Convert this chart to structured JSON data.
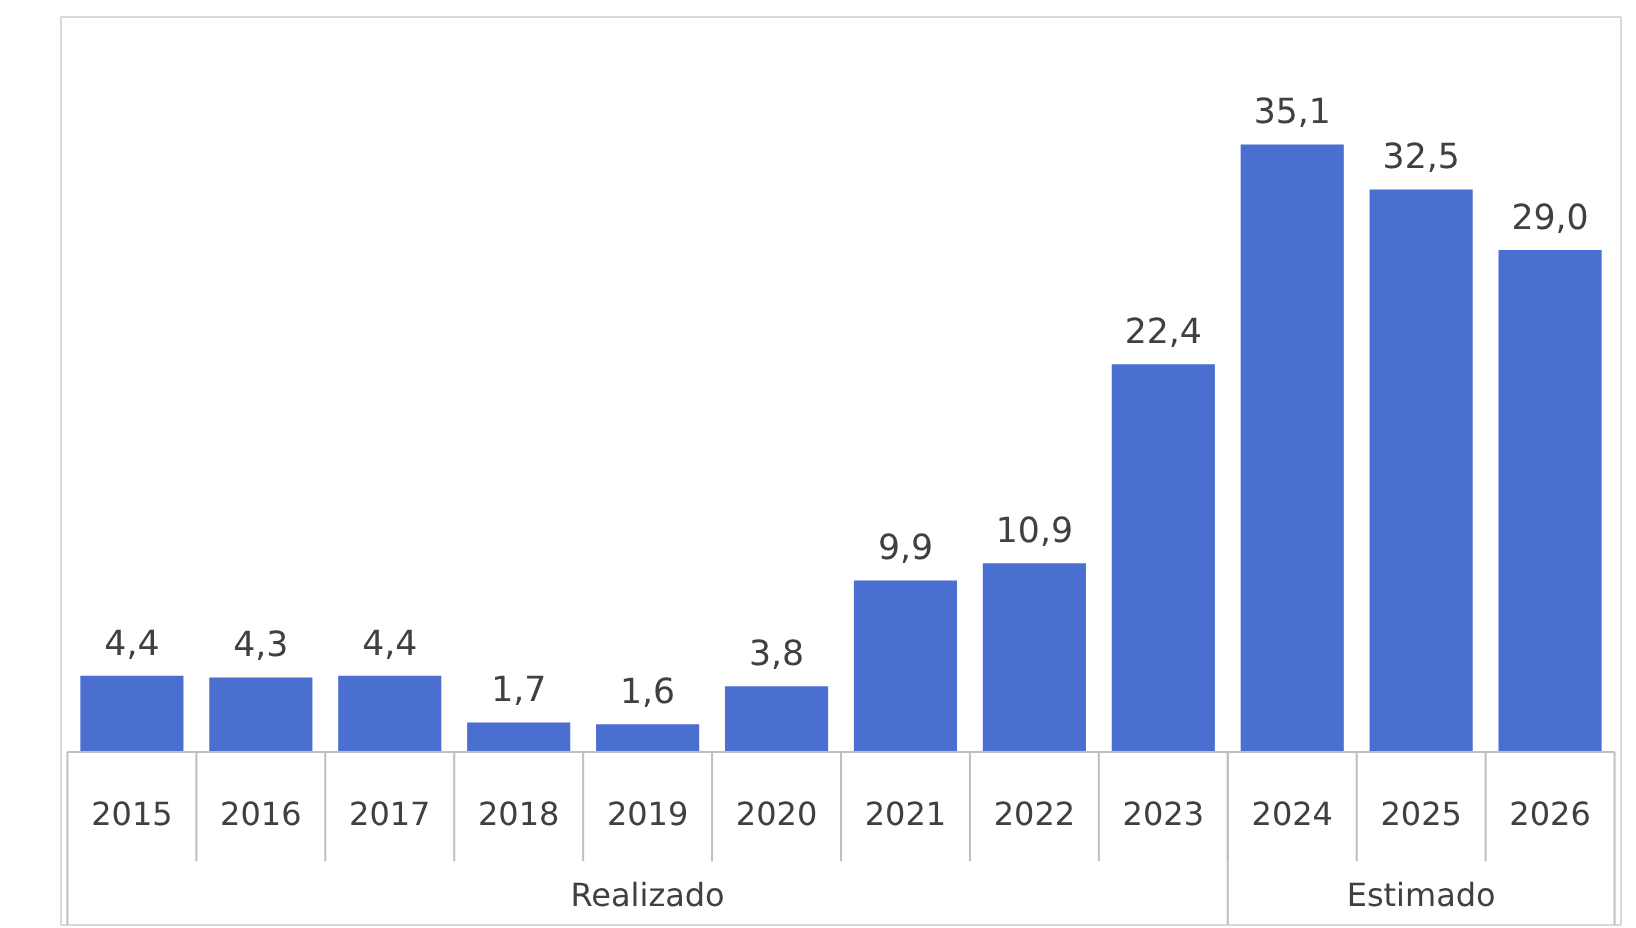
{
  "chart_data": {
    "type": "bar",
    "categories": [
      "2015",
      "2016",
      "2017",
      "2018",
      "2019",
      "2020",
      "2021",
      "2022",
      "2023",
      "2024",
      "2025",
      "2026"
    ],
    "values": [
      4.4,
      4.3,
      4.4,
      1.7,
      1.6,
      3.8,
      9.9,
      10.9,
      22.4,
      35.1,
      32.5,
      29.0
    ],
    "value_labels": [
      "4,4",
      "4,3",
      "4,4",
      "1,7",
      "1,6",
      "3,8",
      "9,9",
      "10,9",
      "22,4",
      "35,1",
      "32,5",
      "29,0"
    ],
    "color": "#4a6fd0",
    "grid": false,
    "annotations": [
      "Realizado",
      "Estimado"
    ]
  }
}
